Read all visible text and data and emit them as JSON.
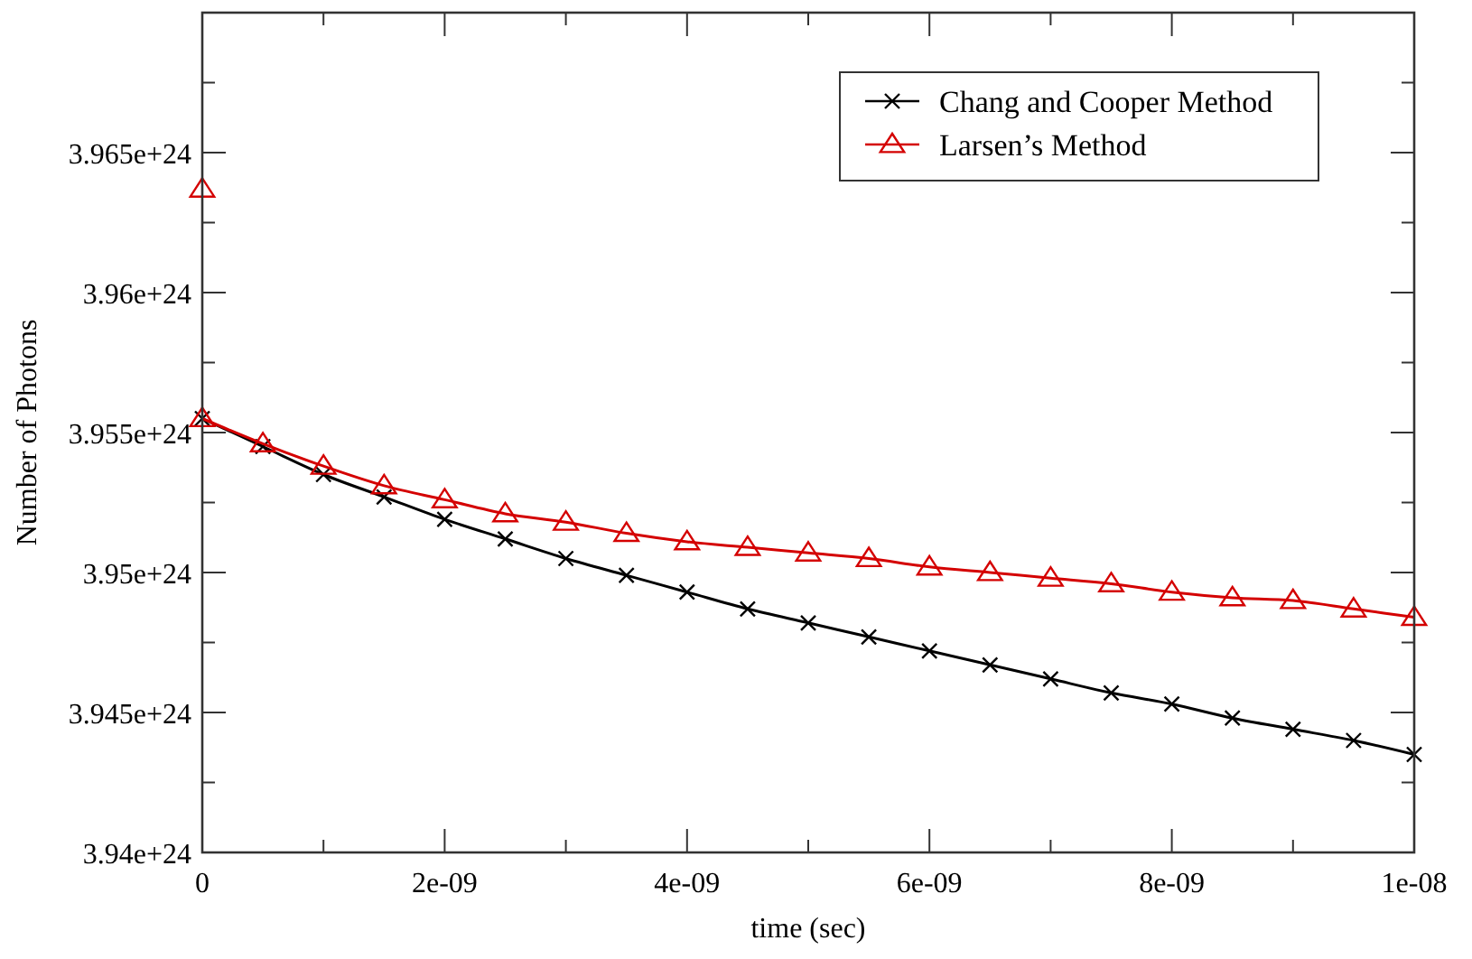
{
  "chart_data": {
    "type": "line",
    "xlabel": "time (sec)",
    "ylabel": "Number of Photons",
    "x": [
      0,
      5e-10,
      1e-09,
      1.5e-09,
      2e-09,
      2.5e-09,
      3e-09,
      3.5e-09,
      4e-09,
      4.5e-09,
      5e-09,
      5.5e-09,
      6e-09,
      6.5e-09,
      7e-09,
      7.5e-09,
      8e-09,
      8.5e-09,
      9e-09,
      9.5e-09,
      1e-08
    ],
    "series": [
      {
        "name": "Chang and Cooper Method",
        "color": "#000000",
        "marker": "cross",
        "values": [
          3.9555e+24,
          3.9545e+24,
          3.9535e+24,
          3.9527e+24,
          3.9519e+24,
          3.9512e+24,
          3.9505e+24,
          3.9499e+24,
          3.9493e+24,
          3.9487e+24,
          3.9482e+24,
          3.9477e+24,
          3.9472e+24,
          3.9467e+24,
          3.9462e+24,
          3.9457e+24,
          3.9453e+24,
          3.9448e+24,
          3.9444e+24,
          3.944e+24,
          3.9435e+24
        ]
      },
      {
        "name": "Larsen’s Method",
        "color": "#d40000",
        "marker": "triangle",
        "values": [
          3.9555e+24,
          3.9546e+24,
          3.9538e+24,
          3.9531e+24,
          3.9526e+24,
          3.9521e+24,
          3.9518e+24,
          3.9514e+24,
          3.9511e+24,
          3.9509e+24,
          3.9507e+24,
          3.9505e+24,
          3.9502e+24,
          3.95e+24,
          3.9498e+24,
          3.9496e+24,
          3.9493e+24,
          3.9491e+24,
          3.949e+24,
          3.9487e+24,
          3.9484e+24
        ]
      },
      {
        "type": "scatter",
        "color": "#d40000",
        "marker": "triangle",
        "x": [
          0
        ],
        "values": [
          3.9637e+24
        ]
      }
    ],
    "xlim": [
      0,
      1e-08
    ],
    "xticks": [
      {
        "value": 0,
        "label": "0"
      },
      {
        "value": 1e-09,
        "label": null
      },
      {
        "value": 2e-09,
        "label": "2e-09"
      },
      {
        "value": 3e-09,
        "label": null
      },
      {
        "value": 4e-09,
        "label": "4e-09"
      },
      {
        "value": 5e-09,
        "label": null
      },
      {
        "value": 6e-09,
        "label": "6e-09"
      },
      {
        "value": 7e-09,
        "label": null
      },
      {
        "value": 8e-09,
        "label": "8e-09"
      },
      {
        "value": 9e-09,
        "label": null
      },
      {
        "value": 1e-08,
        "label": "1e-08"
      }
    ],
    "ylim": [
      3.94e+24,
      3.97e+24
    ],
    "yticks": [
      {
        "value": 3.94e+24,
        "label": "3.94e+24"
      },
      {
        "value": 3.9425e+24,
        "label": null
      },
      {
        "value": 3.945e+24,
        "label": "3.945e+24"
      },
      {
        "value": 3.9475e+24,
        "label": null
      },
      {
        "value": 3.95e+24,
        "label": "3.95e+24"
      },
      {
        "value": 3.9525e+24,
        "label": null
      },
      {
        "value": 3.955e+24,
        "label": "3.955e+24"
      },
      {
        "value": 3.9575e+24,
        "label": null
      },
      {
        "value": 3.96e+24,
        "label": "3.96e+24"
      },
      {
        "value": 3.9625e+24,
        "label": null
      },
      {
        "value": 3.965e+24,
        "label": "3.965e+24"
      },
      {
        "value": 3.9675e+24,
        "label": null
      }
    ],
    "legend": "top right",
    "grid": false
  }
}
